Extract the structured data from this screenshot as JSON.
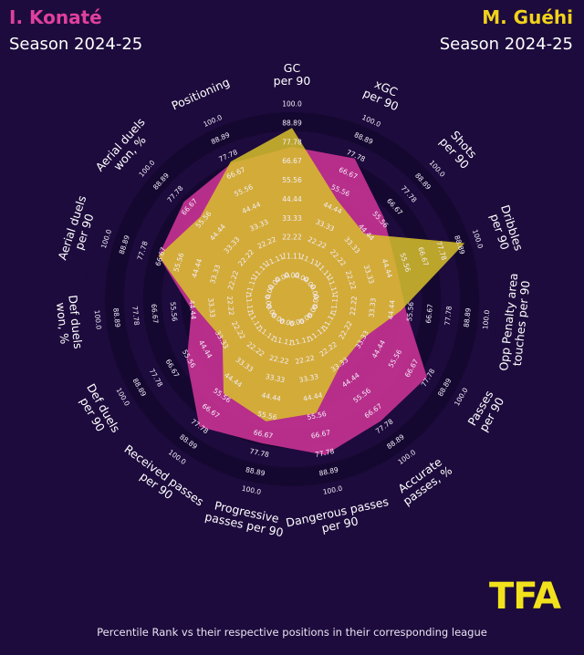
{
  "players": {
    "left": {
      "name": "I. Konaté",
      "season": "Season 2024-25",
      "color": "#c0308f"
    },
    "right": {
      "name": "M. Guéhi",
      "season": "Season 2024-25",
      "color": "#d8c12a"
    }
  },
  "footer": "Percentile Rank vs their respective positions in their corresponding league",
  "logo": {
    "text": "TFA",
    "color": "#f2e21c"
  },
  "colors": {
    "background": "#1d0b3d",
    "ring_dark": "#150830",
    "ring_light": "#1d0b3d",
    "konate_fill": "#c0308f",
    "guehi_fill": "#d8c12a"
  },
  "chart_data": {
    "type": "radar",
    "categories": [
      "GC\nper 90",
      "xGC\nper 90",
      "Shots\nper 90",
      "Dribbles\nper 90",
      "Opp Penalty area\ntouches per 90",
      "Passes\nper 90",
      "Accurate\npasses, %",
      "Dangerous passes\nper 90",
      "Progressive\npasses per 90",
      "Received passes\nper 90",
      "Def duels\nper 90",
      "Def duels\nwon, %",
      "Aerial duels\nper 90",
      "Aerial duels\nwon, %",
      "Positioning"
    ],
    "ring_labels": [
      "0.00",
      "11.11",
      "22.22",
      "33.33",
      "44.44",
      "55.56",
      "66.67",
      "77.78",
      "88.89",
      "100.0"
    ],
    "range": [
      0,
      100
    ],
    "series": [
      {
        "name": "I. Konaté",
        "values": [
          75,
          76,
          58,
          50,
          53,
          77,
          74,
          79,
          72,
          78,
          57,
          45,
          68,
          71,
          73
        ]
      },
      {
        "name": "M. Guéhi",
        "values": [
          86,
          50,
          43,
          92,
          50,
          33,
          34,
          54,
          59,
          54,
          33,
          42,
          68,
          58,
          74
        ]
      }
    ]
  }
}
